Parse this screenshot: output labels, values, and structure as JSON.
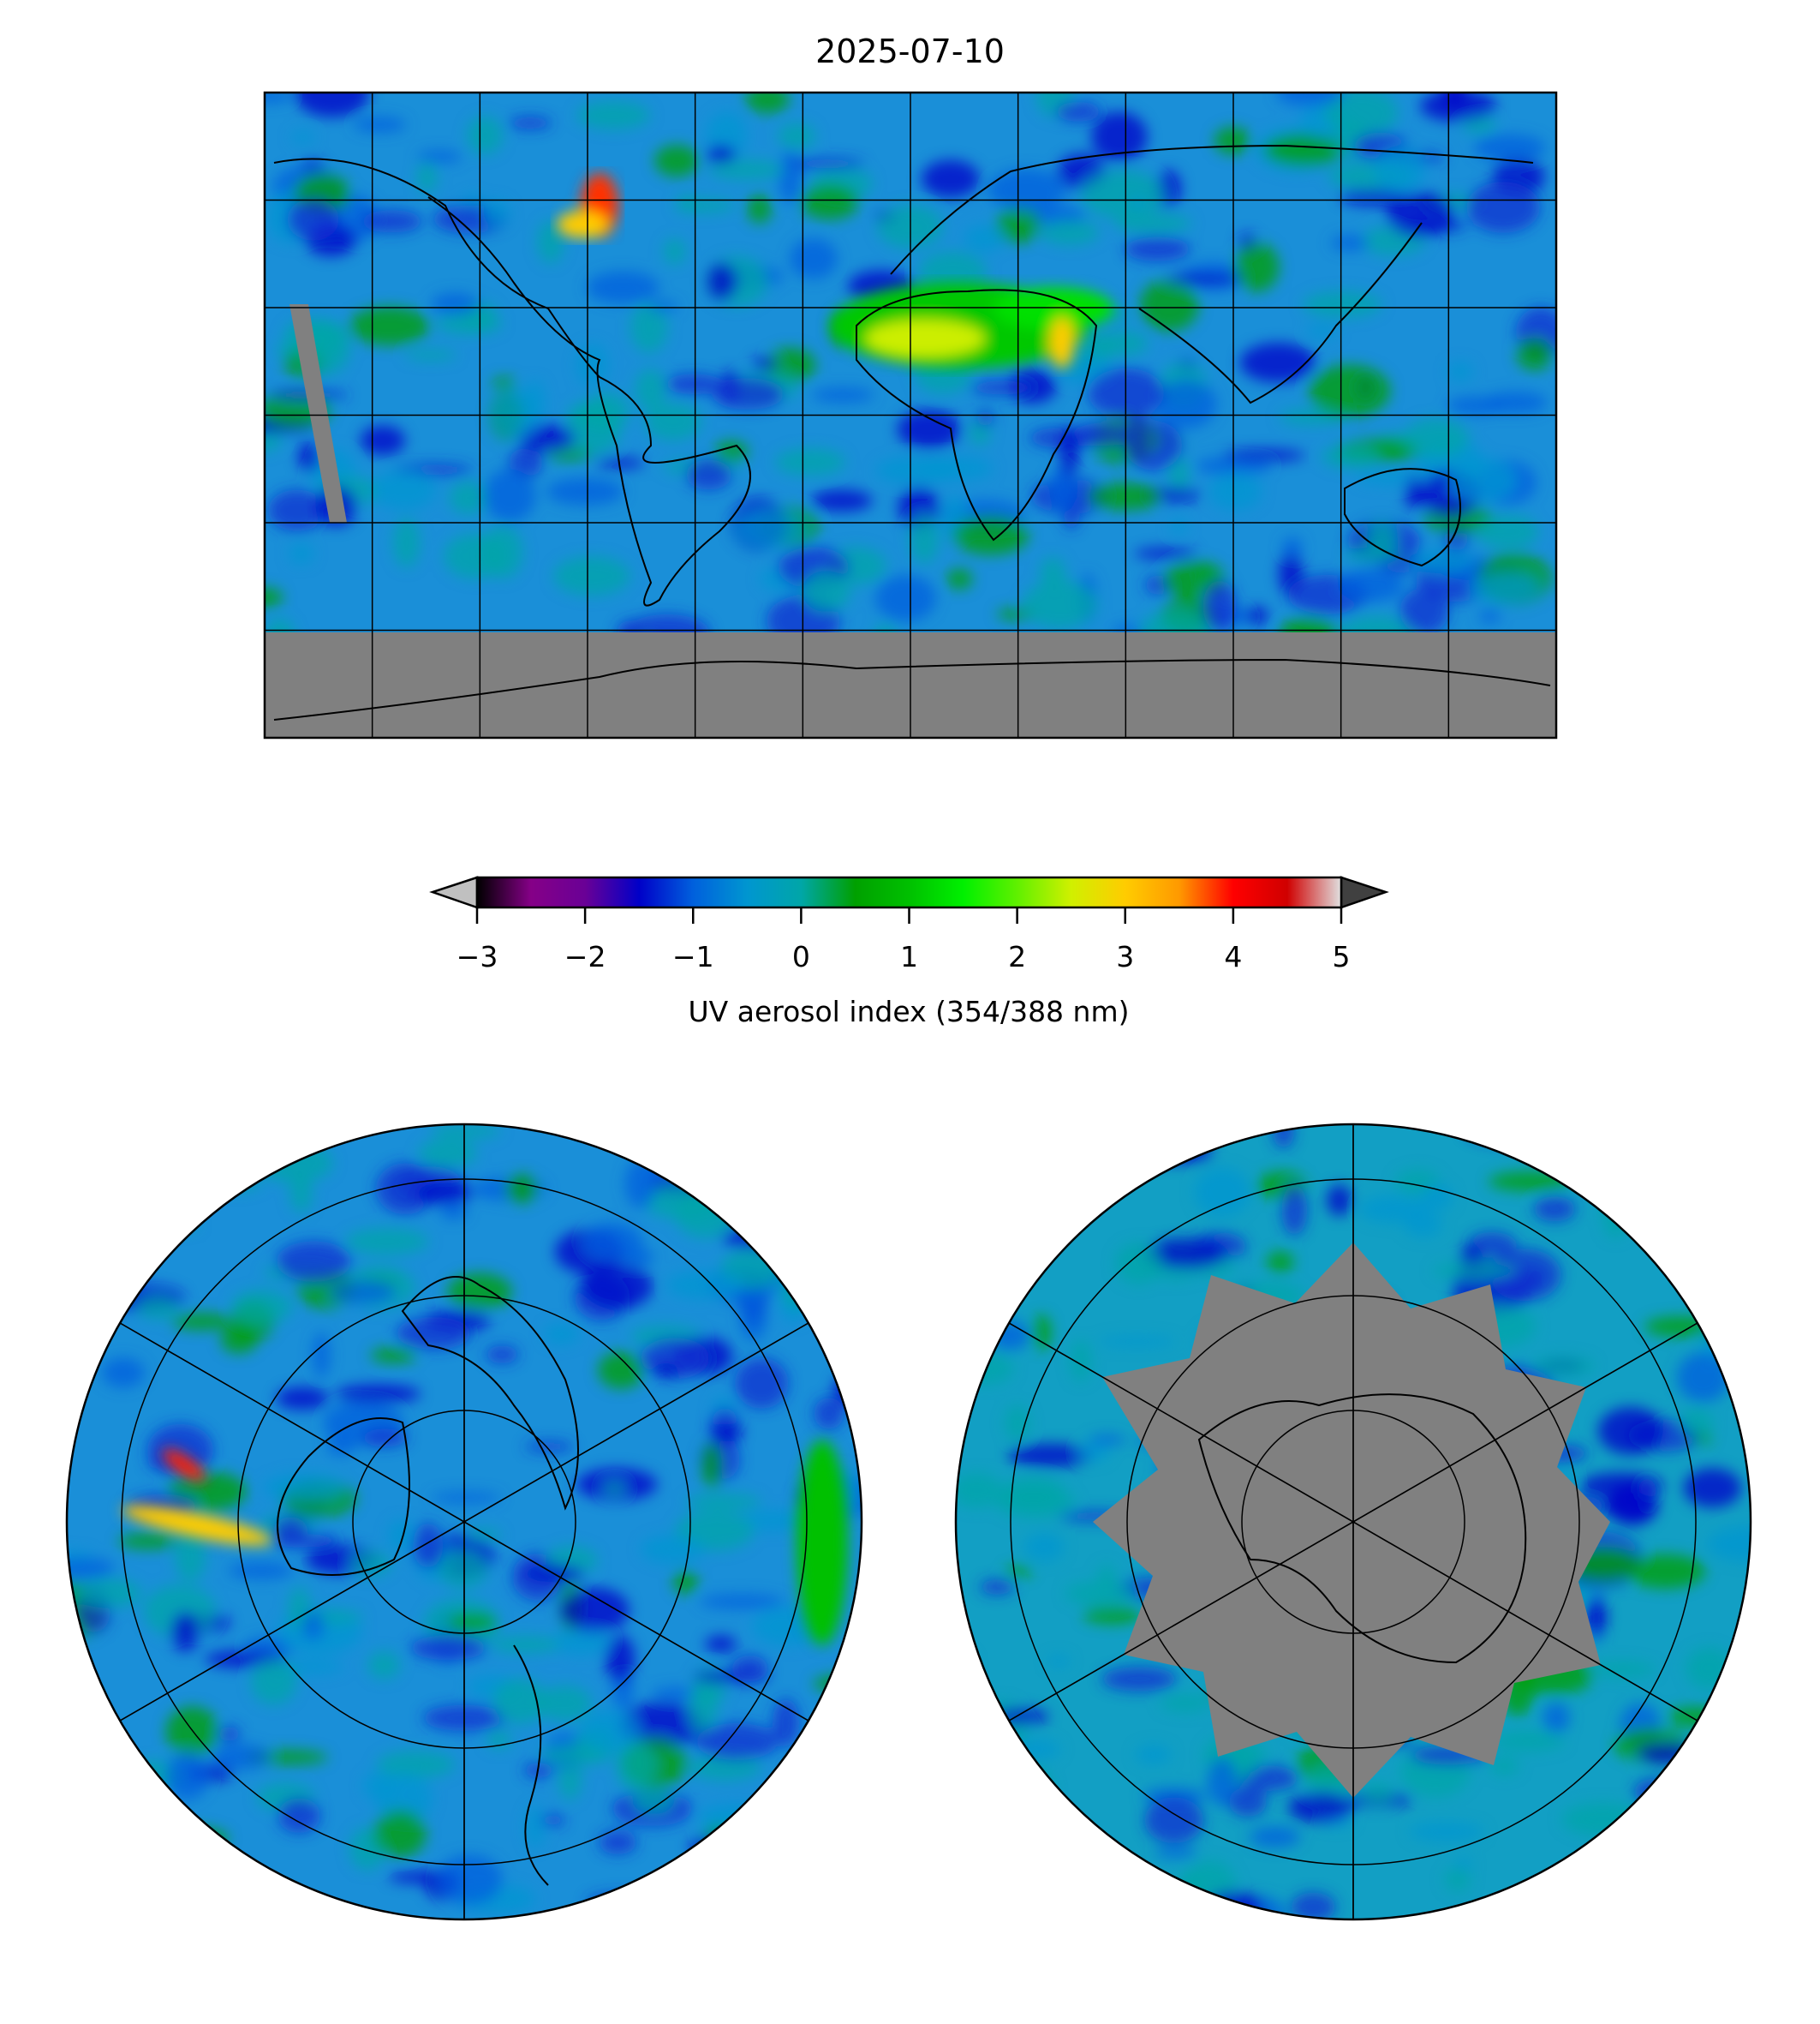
{
  "title": "2025-07-10",
  "chart_data": {
    "type": "heatmap",
    "title": "2025-07-10",
    "panels": [
      "global-equirectangular",
      "north-polar-stereographic",
      "south-polar-stereographic"
    ],
    "colorbar": {
      "label": "UV aerosol index (354/388 nm)",
      "range": [
        -3,
        5
      ],
      "ticks": [
        -3,
        -2,
        -1,
        0,
        1,
        2,
        3,
        4,
        5
      ],
      "tick_labels": [
        "−3",
        "−2",
        "−1",
        "0",
        "1",
        "2",
        "3",
        "4",
        "5"
      ],
      "extend": "both",
      "under_color": "#c0c0c0",
      "over_color": "#404040",
      "stops": [
        [
          -3,
          "#000000"
        ],
        [
          -2.5,
          "#850087"
        ],
        [
          -2,
          "#6a0096"
        ],
        [
          -1.5,
          "#0000c8"
        ],
        [
          -1,
          "#0060dd"
        ],
        [
          -0.5,
          "#0096d0"
        ],
        [
          0,
          "#00a6a8"
        ],
        [
          0.5,
          "#00a000"
        ],
        [
          1,
          "#00c000"
        ],
        [
          1.5,
          "#00f000"
        ],
        [
          2,
          "#60f000"
        ],
        [
          2.5,
          "#d0f000"
        ],
        [
          3,
          "#ffcc00"
        ],
        [
          3.5,
          "#ff9900"
        ],
        [
          4,
          "#ff0000"
        ],
        [
          4.5,
          "#d00000"
        ],
        [
          5,
          "#e0e0e0"
        ]
      ],
      "nodata_color": "#808080"
    },
    "grid": true,
    "global_grid_spacing_deg": 30
  }
}
